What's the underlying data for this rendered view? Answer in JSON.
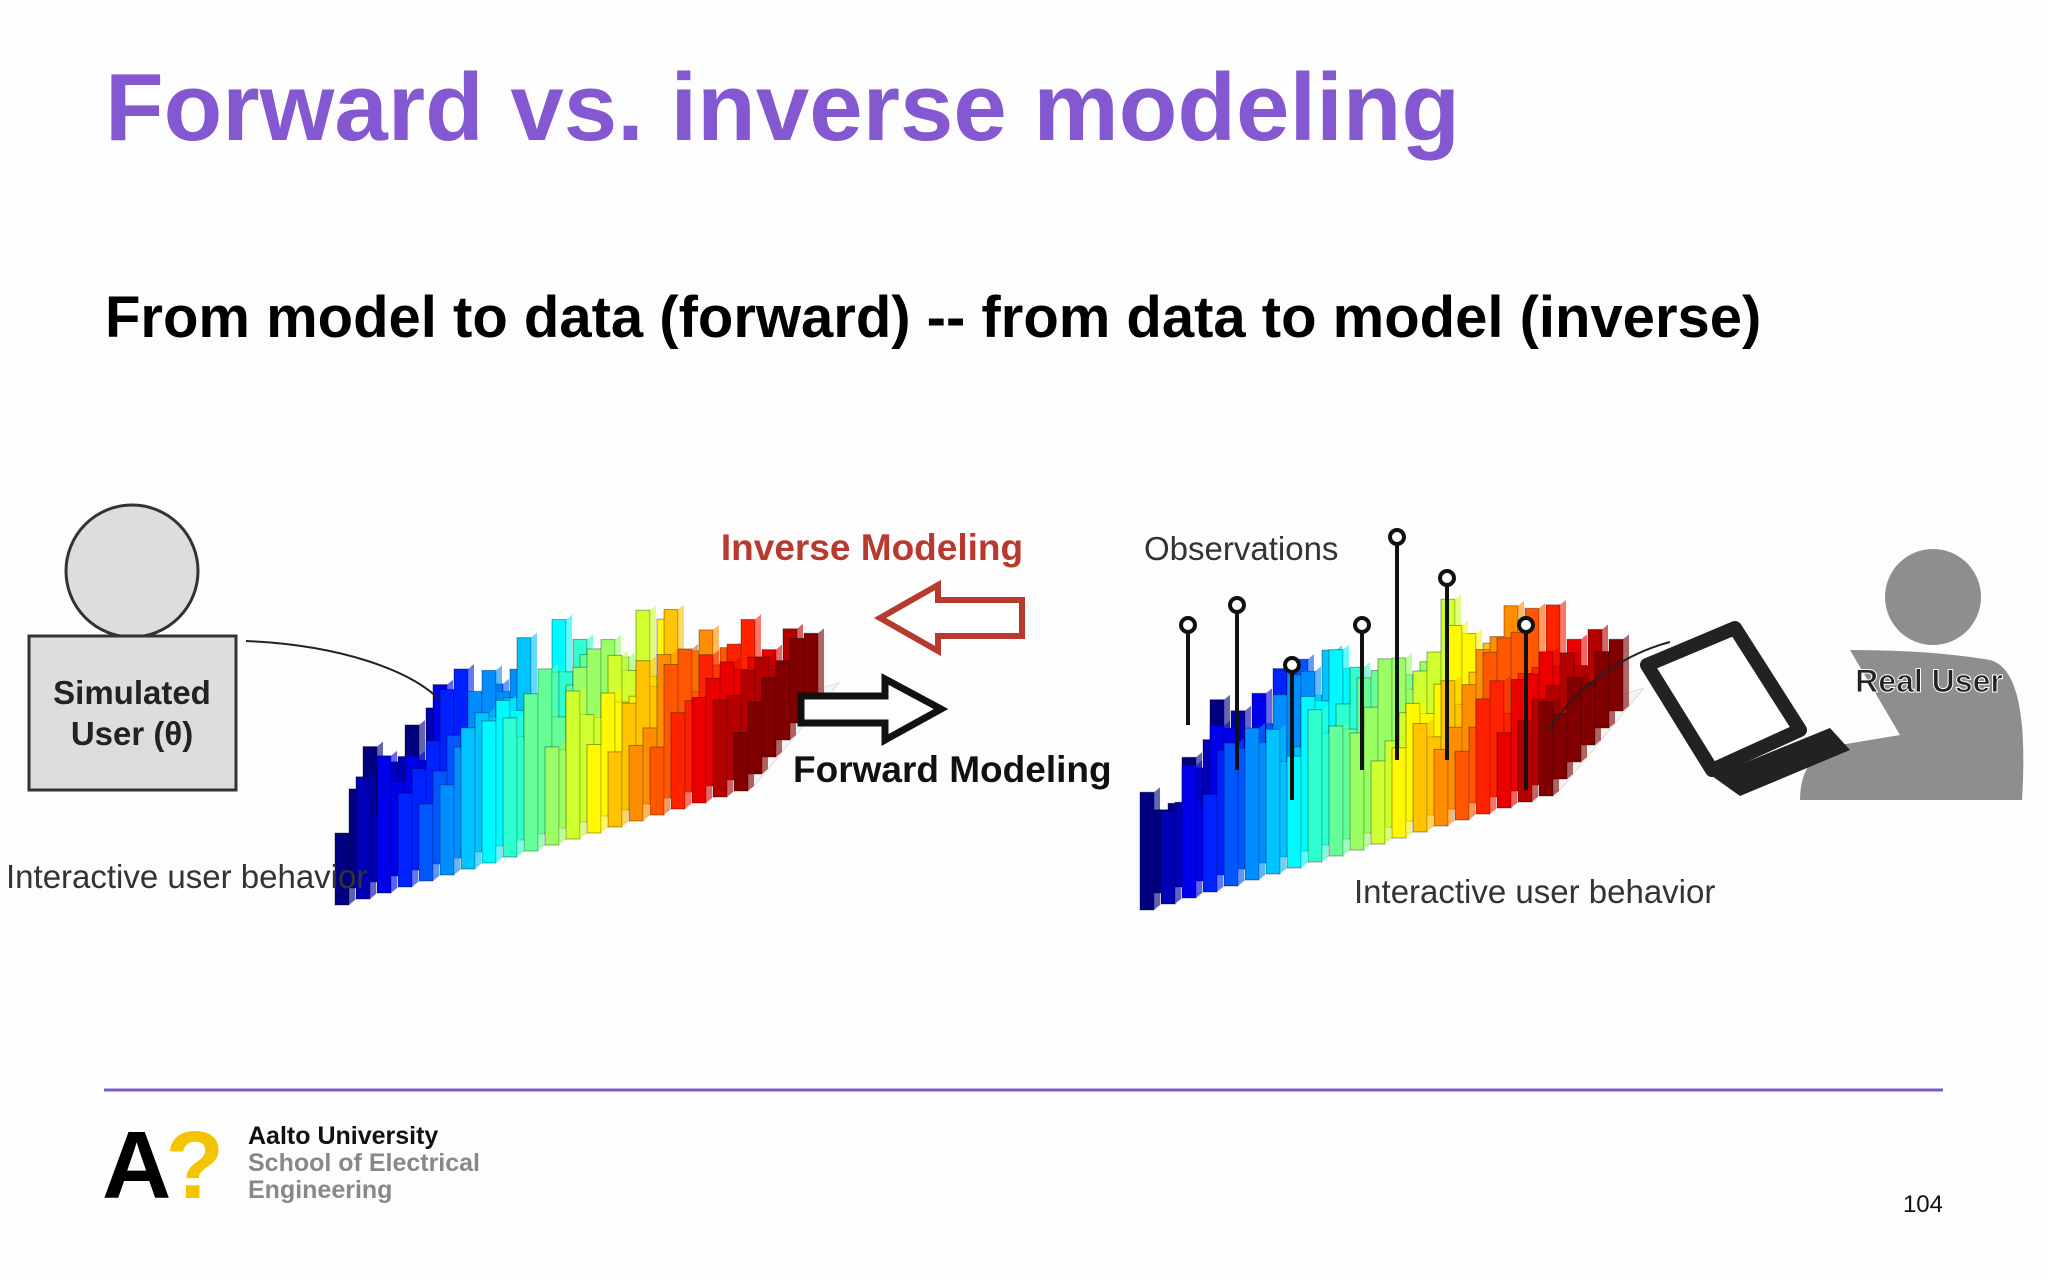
{
  "slide": {
    "title": "Forward vs. inverse modeling",
    "subtitle": "From model to data (forward) -- from data to model (inverse)",
    "diagram": {
      "simulated_user": [
        "Simulated",
        "User (θ)"
      ],
      "left_caption": "Interactive user behavior",
      "inverse_label": "Inverse Modeling",
      "forward_label": "Forward Modeling",
      "observations_label": "Observations",
      "right_caption": "Interactive user behavior",
      "real_user": "Real User"
    },
    "footer": {
      "logo": "A?",
      "university": "Aalto University",
      "school": [
        "School of Electrical",
        "Engineering"
      ],
      "page_number": "104"
    }
  }
}
